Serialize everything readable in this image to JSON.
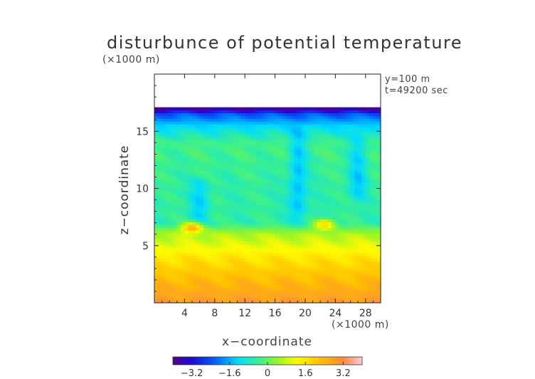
{
  "chart_data": {
    "type": "heatmap",
    "title": "disturbunce of potential temperature",
    "xlabel": "x−coordinate",
    "ylabel": "z−coordinate",
    "x_unit": "(×1000 m)",
    "y_unit": "(×1000 m)",
    "annotations": [
      "y=100 m",
      "t=49200 sec"
    ],
    "xlim": [
      0,
      30
    ],
    "ylim": [
      0,
      20
    ],
    "x_ticks": [
      4,
      8,
      12,
      16,
      20,
      24,
      28
    ],
    "y_ticks": [
      5,
      10,
      15
    ],
    "x_tick_labels": [
      "4",
      "8",
      "12",
      "16",
      "20",
      "24",
      "28"
    ],
    "y_tick_labels": [
      "5",
      "10",
      "15"
    ],
    "colorbar": {
      "range": [
        -4,
        4
      ],
      "ticks": [
        -3.2,
        -1.6,
        0,
        1.6,
        3.2
      ],
      "tick_labels": [
        "−3.2",
        "−1.6",
        "0",
        "1.6",
        "3.2"
      ]
    },
    "field_top_z": 17.1,
    "vertical_profile": [
      {
        "z": 0,
        "value": 2.9
      },
      {
        "z": 2,
        "value": 2.3
      },
      {
        "z": 4,
        "value": 1.6
      },
      {
        "z": 6,
        "value": 0.6
      },
      {
        "z": 7,
        "value": -0.5
      },
      {
        "z": 10,
        "value": -0.5
      },
      {
        "z": 14,
        "value": -0.3
      },
      {
        "z": 15.5,
        "value": -1.3
      },
      {
        "z": 16.5,
        "value": -2.3
      },
      {
        "z": 17.1,
        "value": -4.0
      }
    ],
    "features": [
      {
        "type": "warm_blob",
        "x": 5,
        "z": 6.6,
        "value": 2.5
      },
      {
        "type": "warm_blob",
        "x": 22.6,
        "z": 6.9,
        "value": 1.8
      },
      {
        "type": "cold_plume",
        "x": 19,
        "z_from": 7,
        "z_to": 15,
        "value": -1.5
      },
      {
        "type": "cold_plume",
        "x": 6,
        "z_from": 7,
        "z_to": 11,
        "value": -1.3
      },
      {
        "type": "cold_plume",
        "x": 27,
        "z_from": 9,
        "z_to": 15,
        "value": -1.3
      }
    ]
  }
}
